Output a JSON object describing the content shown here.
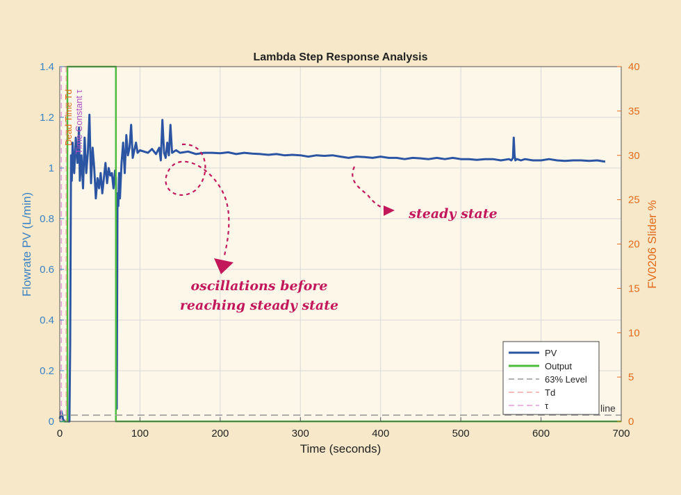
{
  "chart_data": {
    "type": "line",
    "title": "Lambda Step Response Analysis",
    "xlabel": "Time (seconds)",
    "ylabel_left": "Flowrate PV (L/min)",
    "ylabel_right": "FV0206 Slider %",
    "xlim": [
      0,
      700
    ],
    "ylim_left": [
      0,
      1.4
    ],
    "ylim_right": [
      0,
      40
    ],
    "x_ticks": [
      "0",
      "100",
      "200",
      "300",
      "400",
      "500",
      "600",
      "700"
    ],
    "y_ticks_left": [
      "0",
      "0.2",
      "0.4",
      "0.6",
      "0.8",
      "1",
      "1.2",
      "1.4"
    ],
    "y_ticks_right": [
      "0",
      "5",
      "10",
      "15",
      "20",
      "25",
      "30",
      "35",
      "40"
    ],
    "grid": true,
    "legend_position": "bottom-right",
    "series": [
      {
        "name": "PV",
        "axis": "left",
        "color": "#2b55a3",
        "x": [
          0,
          2,
          4,
          6,
          8,
          10,
          12,
          13,
          14,
          15,
          16,
          18,
          20,
          22,
          24,
          25,
          27,
          29,
          31,
          33,
          35,
          37,
          39,
          41,
          43,
          45,
          47,
          49,
          51,
          53,
          55,
          57,
          59,
          61,
          63,
          65,
          67,
          69,
          70,
          71,
          72,
          73,
          74,
          75,
          77,
          79,
          81,
          83,
          85,
          87,
          89,
          91,
          93,
          95,
          97,
          100,
          105,
          110,
          115,
          120,
          124,
          126,
          128,
          130,
          132,
          134,
          136,
          138,
          140,
          145,
          150,
          160,
          170,
          180,
          190,
          200,
          210,
          220,
          230,
          240,
          250,
          260,
          270,
          280,
          290,
          300,
          310,
          320,
          330,
          340,
          350,
          360,
          370,
          380,
          390,
          400,
          410,
          420,
          430,
          440,
          450,
          460,
          470,
          480,
          490,
          500,
          510,
          520,
          530,
          540,
          550,
          560,
          563,
          565,
          566,
          567,
          568,
          570,
          575,
          580,
          590,
          600,
          610,
          620,
          630,
          640,
          650,
          660,
          670,
          680
        ],
        "y": [
          0.01,
          0.04,
          0.01,
          0,
          0,
          0,
          0,
          0.3,
          1.05,
          0.95,
          1.1,
          0.98,
          1.12,
          1.02,
          1.16,
          0.95,
          1.05,
          0.92,
          1.12,
          0.98,
          1.06,
          1.21,
          0.94,
          1.08,
          1.0,
          0.88,
          0.96,
          0.92,
          0.98,
          0.9,
          0.96,
          1.02,
          0.94,
          1.0,
          0.97,
          0.98,
          0.92,
          0.99,
          0.96,
          0.05,
          0.9,
          0.85,
          0.98,
          0.88,
          1.02,
          1.1,
          0.98,
          1.13,
          1.05,
          1.08,
          1.17,
          1.04,
          1.07,
          1.1,
          1.06,
          1.07,
          1.065,
          1.06,
          1.075,
          1.055,
          1.08,
          1.03,
          1.19,
          1.06,
          1.04,
          1.1,
          1.05,
          1.17,
          1.06,
          1.07,
          1.06,
          1.065,
          1.055,
          1.06,
          1.06,
          1.058,
          1.062,
          1.055,
          1.06,
          1.057,
          1.055,
          1.052,
          1.055,
          1.05,
          1.052,
          1.05,
          1.045,
          1.05,
          1.048,
          1.05,
          1.045,
          1.04,
          1.045,
          1.043,
          1.04,
          1.045,
          1.04,
          1.04,
          1.035,
          1.04,
          1.038,
          1.035,
          1.04,
          1.035,
          1.04,
          1.035,
          1.035,
          1.032,
          1.035,
          1.035,
          1.03,
          1.035,
          1.03,
          1.04,
          1.12,
          1.05,
          1.03,
          1.035,
          1.03,
          1.035,
          1.03,
          1.03,
          1.035,
          1.03,
          1.028,
          1.03,
          1.03,
          1.028,
          1.03,
          1.025
        ]
      },
      {
        "name": "Output",
        "axis": "right",
        "color": "#4dbb3b",
        "x": [
          0,
          9.5,
          9.5,
          70,
          70,
          700
        ],
        "y": [
          0,
          0,
          40,
          40,
          0,
          0
        ]
      },
      {
        "name": "63% Level",
        "axis": "left",
        "color": "#9a9a9a",
        "dash": "10,6",
        "x": [
          0,
          700
        ],
        "y": [
          0.025,
          0.025
        ]
      },
      {
        "name": "Td",
        "axis": "left",
        "color": "#f2a6a6",
        "dash": "8,5",
        "vertical_at": 8
      },
      {
        "name": "τ",
        "axis": "left",
        "color": "#e39ad6",
        "dash": "8,5",
        "vertical_at": 2
      }
    ],
    "legend": [
      "PV",
      "Output",
      "63% Level",
      "Td",
      "τ"
    ],
    "inline_labels": {
      "dead_time": "Dead Time Td",
      "time_constant": "Time Constant τ",
      "baseline": "line"
    },
    "annotations": [
      {
        "text": "oscillations before",
        "color": "#c2185b"
      },
      {
        "text": "reaching steady state",
        "color": "#c2185b"
      },
      {
        "text": "steady state",
        "color": "#c2185b"
      }
    ]
  },
  "colors": {
    "background": "#f6e8c9",
    "plot_background": "#fdf7ea",
    "left_axis": "#3b82c4",
    "right_axis": "#e36a1a",
    "annotation": "#c2185b"
  }
}
